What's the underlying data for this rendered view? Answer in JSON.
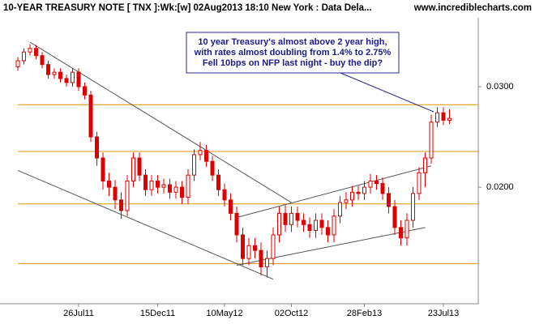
{
  "chart_data": {
    "type": "candlestick",
    "title": "10-YEAR TREASURY NOTE [ TNX ]:Wk:[w]  02Aug2013 18:10 New York : Data Dela...",
    "source": "www.incrediblecharts.com",
    "annotation": [
      "10 year Treasury's almost above 2 year high,",
      "with rates almost doubling from 1.4% to 2.75%",
      "Fell 10bps on NFP last night - buy the dip?"
    ],
    "log_scale": true,
    "color": "#dd0000",
    "ylim": [
      0.0125,
      0.0396
    ],
    "yticks": [
      {
        "value": 0.02,
        "label": "0.0200"
      },
      {
        "value": 0.03,
        "label": "0.0300"
      }
    ],
    "categories": [
      null,
      null,
      null,
      null,
      null,
      null,
      null,
      null,
      null,
      null,
      "26Jul11",
      null,
      null,
      null,
      null,
      null,
      null,
      null,
      null,
      null,
      null,
      null,
      null,
      "15Dec11",
      null,
      null,
      null,
      null,
      null,
      null,
      null,
      null,
      null,
      null,
      "10May12",
      null,
      null,
      null,
      null,
      null,
      null,
      null,
      null,
      null,
      null,
      "02Oct12",
      null,
      null,
      null,
      null,
      null,
      null,
      null,
      null,
      null,
      null,
      null,
      "28Feb13",
      null,
      null,
      null,
      null,
      null,
      null,
      null,
      null,
      null,
      null,
      null,
      null,
      "23Jul13",
      null
    ],
    "open": [
      0.0325,
      0.0333,
      0.0345,
      0.035,
      0.034,
      0.0328,
      0.0315,
      0.0318,
      0.031,
      0.0305,
      0.0318,
      0.03,
      0.029,
      0.0245,
      0.0225,
      0.0205,
      0.02,
      0.019,
      0.0182,
      0.0205,
      0.0225,
      0.021,
      0.0198,
      0.0205,
      0.02,
      0.0202,
      0.0196,
      0.02,
      0.0192,
      0.021,
      0.0228,
      0.0232,
      0.0222,
      0.021,
      0.0198,
      0.019,
      0.018,
      0.0165,
      0.015,
      0.0158,
      0.0155,
      0.0145,
      0.015,
      0.0165,
      0.018,
      0.0172,
      0.018,
      0.0175,
      0.0172,
      0.0168,
      0.0175,
      0.017,
      0.0165,
      0.0178,
      0.0188,
      0.019,
      0.0196,
      0.0195,
      0.02,
      0.0205,
      0.0203,
      0.0195,
      0.0185,
      0.017,
      0.0163,
      0.0175,
      0.0195,
      0.0212,
      0.0225,
      0.026,
      0.027,
      0.0262
    ],
    "high": [
      0.0338,
      0.035,
      0.0356,
      0.0355,
      0.0345,
      0.0333,
      0.0323,
      0.0323,
      0.0315,
      0.0323,
      0.0323,
      0.0305,
      0.0295,
      0.025,
      0.023,
      0.0212,
      0.0206,
      0.0196,
      0.021,
      0.023,
      0.023,
      0.0215,
      0.021,
      0.021,
      0.0207,
      0.0207,
      0.0205,
      0.0205,
      0.0215,
      0.0233,
      0.024,
      0.0237,
      0.0227,
      0.0215,
      0.0203,
      0.0195,
      0.0185,
      0.017,
      0.0163,
      0.0163,
      0.016,
      0.0155,
      0.017,
      0.0185,
      0.0186,
      0.0185,
      0.0185,
      0.018,
      0.0177,
      0.018,
      0.018,
      0.0175,
      0.0183,
      0.0193,
      0.0196,
      0.0201,
      0.0201,
      0.0205,
      0.0211,
      0.021,
      0.0208,
      0.02,
      0.019,
      0.0175,
      0.018,
      0.02,
      0.0217,
      0.023,
      0.0268,
      0.0276,
      0.0276,
      0.0274
    ],
    "low": [
      0.032,
      0.0328,
      0.034,
      0.0335,
      0.0323,
      0.031,
      0.031,
      0.0305,
      0.03,
      0.03,
      0.0295,
      0.0285,
      0.024,
      0.0218,
      0.0198,
      0.0193,
      0.0183,
      0.0176,
      0.0178,
      0.02,
      0.0205,
      0.0193,
      0.0193,
      0.0195,
      0.0195,
      0.0191,
      0.0191,
      0.0187,
      0.0187,
      0.0205,
      0.0223,
      0.0217,
      0.0205,
      0.0193,
      0.0185,
      0.0175,
      0.016,
      0.0146,
      0.0146,
      0.015,
      0.014,
      0.0139,
      0.0146,
      0.016,
      0.0167,
      0.0167,
      0.017,
      0.0167,
      0.0163,
      0.0163,
      0.0165,
      0.016,
      0.016,
      0.0173,
      0.0183,
      0.0185,
      0.019,
      0.019,
      0.0195,
      0.0198,
      0.019,
      0.018,
      0.0165,
      0.0158,
      0.0158,
      0.017,
      0.019,
      0.02,
      0.022,
      0.0255,
      0.0257,
      0.0258
    ],
    "close": [
      0.0333,
      0.0345,
      0.035,
      0.034,
      0.0328,
      0.0315,
      0.0318,
      0.031,
      0.0305,
      0.0318,
      0.03,
      0.029,
      0.0245,
      0.0225,
      0.0205,
      0.02,
      0.019,
      0.0182,
      0.0205,
      0.0225,
      0.021,
      0.0198,
      0.0205,
      0.02,
      0.0202,
      0.0196,
      0.02,
      0.0192,
      0.021,
      0.0228,
      0.0232,
      0.0222,
      0.021,
      0.0198,
      0.019,
      0.018,
      0.0165,
      0.015,
      0.0158,
      0.0155,
      0.0145,
      0.015,
      0.0165,
      0.018,
      0.0172,
      0.018,
      0.0175,
      0.0172,
      0.0168,
      0.0175,
      0.017,
      0.0165,
      0.0178,
      0.0188,
      0.019,
      0.0196,
      0.0195,
      0.02,
      0.0205,
      0.0203,
      0.0195,
      0.0185,
      0.017,
      0.0163,
      0.0175,
      0.0195,
      0.0212,
      0.0225,
      0.026,
      0.027,
      0.0262,
      0.0264
    ],
    "hlines": {
      "color": "#e69500",
      "values": [
        0.0279,
        0.0231,
        0.0187,
        0.0147
      ]
    },
    "trendlines": {
      "color": "#555555",
      "lines": [
        {
          "x": [
            2,
            45
          ],
          "y": [
            0.0359,
            0.0188
          ]
        },
        {
          "x": [
            0,
            42
          ],
          "y": [
            0.0214,
            0.0138
          ]
        },
        {
          "x": [
            36,
            68
          ],
          "y": [
            0.0177,
            0.0218
          ]
        },
        {
          "x": [
            36,
            67
          ],
          "y": [
            0.0146,
            0.017
          ]
        }
      ]
    }
  }
}
